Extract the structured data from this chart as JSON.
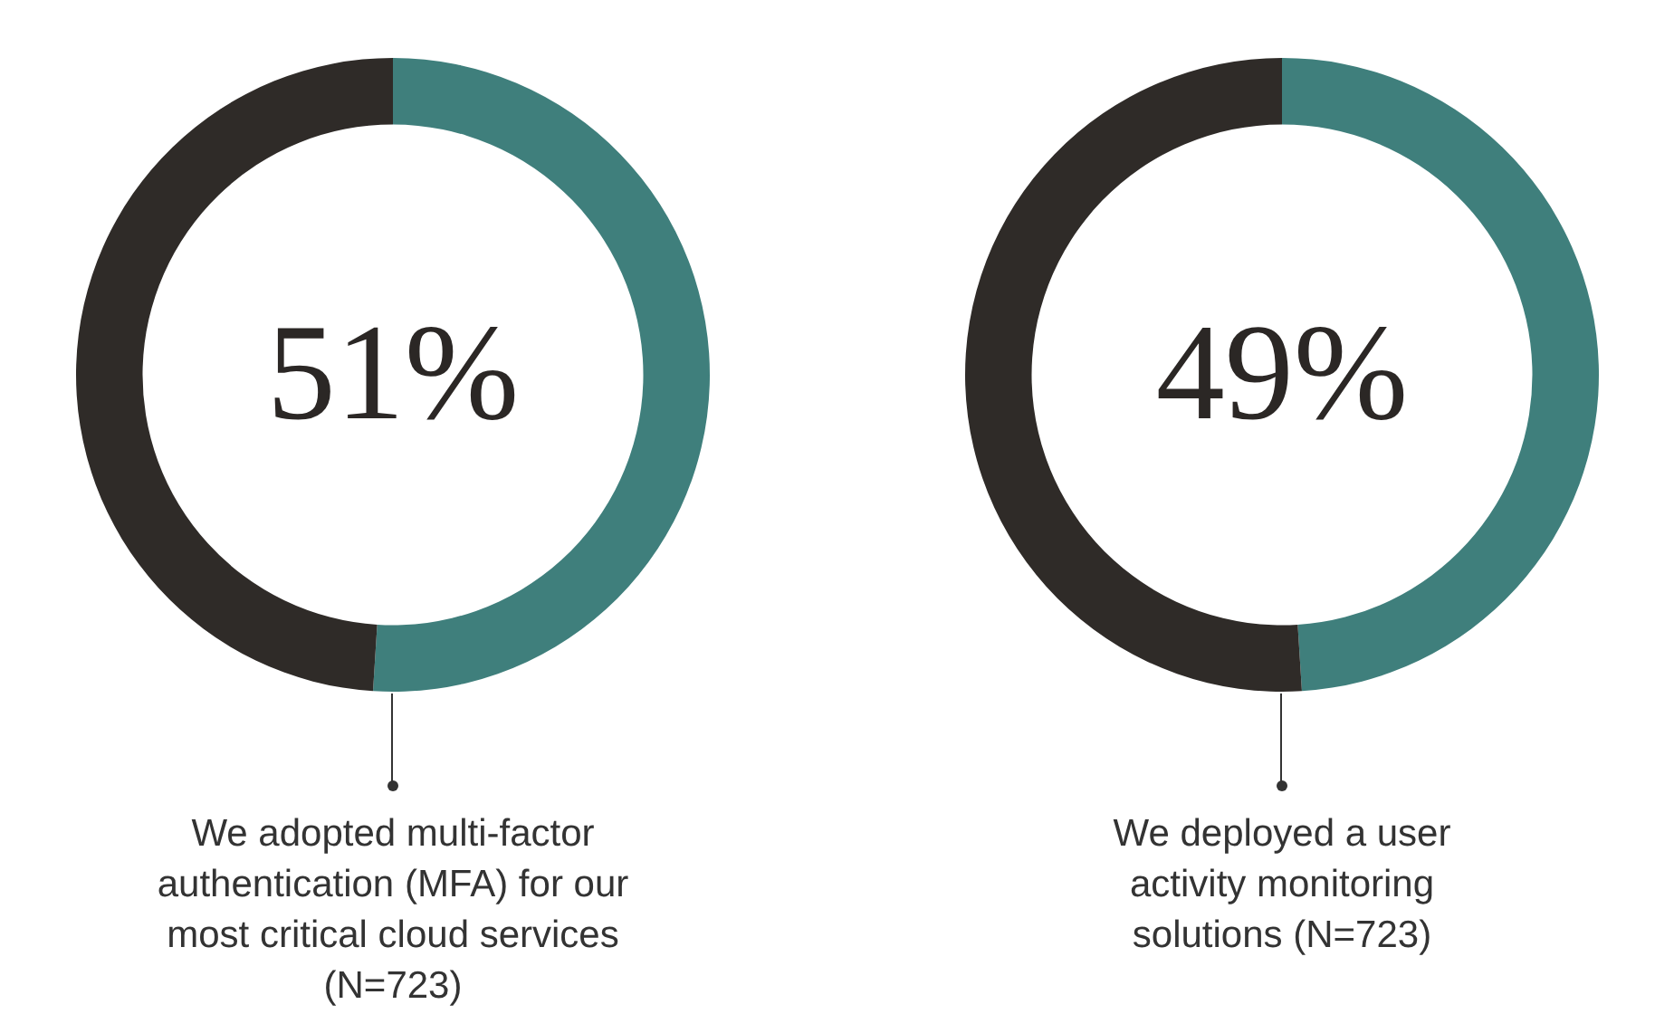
{
  "chart_data": [
    {
      "type": "donut",
      "categories": [
        null,
        null
      ],
      "values": [
        51,
        49
      ],
      "colors": [
        "#3f7f7c",
        "#2f2b28"
      ],
      "value_labels": [
        "51%",
        null
      ],
      "legend": false,
      "annotations": [
        "We adopted multi-factor authentication (MFA) for our most critical cloud services (N=723)"
      ]
    },
    {
      "type": "donut",
      "categories": [
        null,
        null
      ],
      "values": [
        49,
        51
      ],
      "colors": [
        "#3f7f7c",
        "#2f2b28"
      ],
      "value_labels": [
        "49%",
        null
      ],
      "legend": false,
      "annotations": [
        "We deployed a user activity monitoring solutions (N=723)"
      ]
    }
  ]
}
